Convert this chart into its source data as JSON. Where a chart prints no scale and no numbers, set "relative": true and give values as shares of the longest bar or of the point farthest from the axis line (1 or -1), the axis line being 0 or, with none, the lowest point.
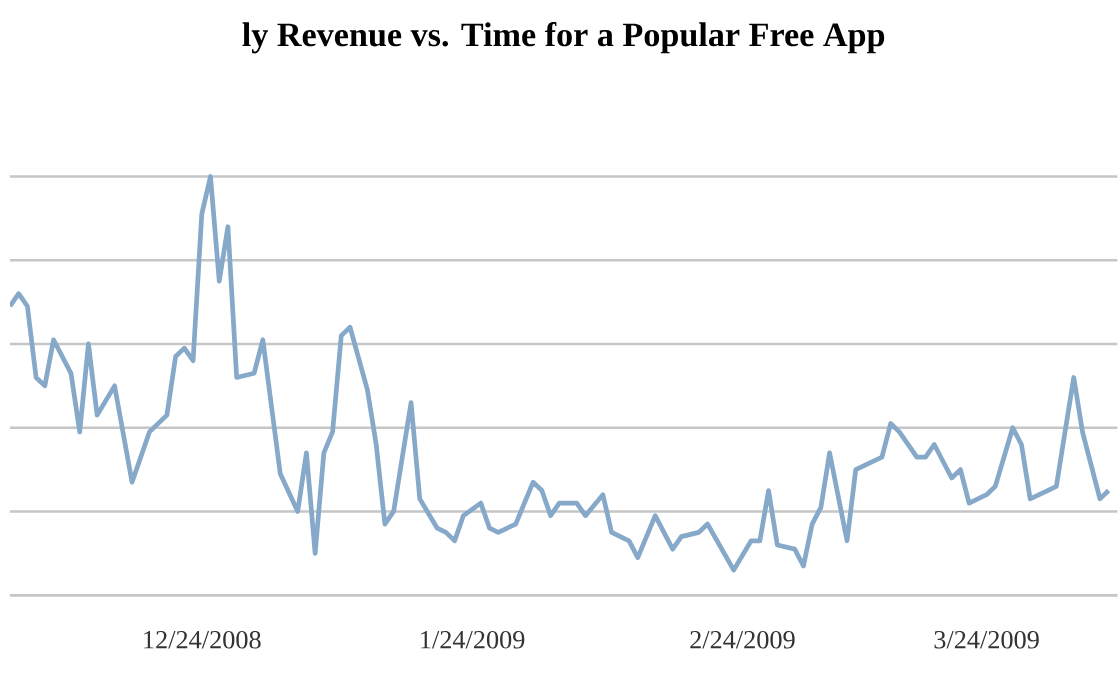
{
  "chart_data": {
    "type": "line",
    "title": "ly Revenue vs. Time for a Popular Free App",
    "relative": true,
    "grid": "y",
    "tick_labels": "x",
    "marker": "none",
    "line_style": "solid",
    "xlim": [
      "2008-12-02",
      "2009-04-08"
    ],
    "xticks": [
      {
        "value": "2008-12-24",
        "label": "12/24/2008"
      },
      {
        "value": "2009-01-24",
        "label": "1/24/2009"
      },
      {
        "value": "2009-02-24",
        "label": "2/24/2009"
      },
      {
        "value": "2009-03-24",
        "label": "3/24/2009"
      }
    ],
    "x": [
      "2008-12-02",
      "2008-12-03",
      "2008-12-04",
      "2008-12-05",
      "2008-12-06",
      "2008-12-07",
      "2008-12-09",
      "2008-12-10",
      "2008-12-11",
      "2008-12-12",
      "2008-12-14",
      "2008-12-16",
      "2008-12-18",
      "2008-12-20",
      "2008-12-21",
      "2008-12-22",
      "2008-12-23",
      "2008-12-24",
      "2008-12-25",
      "2008-12-26",
      "2008-12-27",
      "2008-12-28",
      "2008-12-30",
      "2008-12-31",
      "2009-01-02",
      "2009-01-04",
      "2009-01-05",
      "2009-01-06",
      "2009-01-07",
      "2009-01-08",
      "2009-01-09",
      "2009-01-10",
      "2009-01-12",
      "2009-01-13",
      "2009-01-14",
      "2009-01-15",
      "2009-01-17",
      "2009-01-18",
      "2009-01-20",
      "2009-01-21",
      "2009-01-22",
      "2009-01-23",
      "2009-01-25",
      "2009-01-26",
      "2009-01-27",
      "2009-01-29",
      "2009-01-31",
      "2009-02-01",
      "2009-02-02",
      "2009-02-03",
      "2009-02-05",
      "2009-02-06",
      "2009-02-08",
      "2009-02-09",
      "2009-02-11",
      "2009-02-12",
      "2009-02-14",
      "2009-02-16",
      "2009-02-17",
      "2009-02-19",
      "2009-02-20",
      "2009-02-23",
      "2009-02-25",
      "2009-02-26",
      "2009-02-27",
      "2009-02-28",
      "2009-03-02",
      "2009-03-03",
      "2009-03-04",
      "2009-03-05",
      "2009-03-06",
      "2009-03-08",
      "2009-03-09",
      "2009-03-12",
      "2009-03-13",
      "2009-03-14",
      "2009-03-16",
      "2009-03-17",
      "2009-03-18",
      "2009-03-20",
      "2009-03-21",
      "2009-03-22",
      "2009-03-24",
      "2009-03-25",
      "2009-03-27",
      "2009-03-28",
      "2009-03-29",
      "2009-03-31",
      "2009-04-01",
      "2009-04-03",
      "2009-04-04",
      "2009-04-06",
      "2009-04-07"
    ],
    "series": [
      {
        "color": "#87a9c9",
        "values": [
          0.69,
          0.72,
          0.69,
          0.52,
          0.5,
          0.61,
          0.53,
          0.39,
          0.6,
          0.43,
          0.5,
          0.27,
          0.39,
          0.43,
          0.57,
          0.59,
          0.56,
          0.91,
          1.0,
          0.75,
          0.88,
          0.52,
          0.53,
          0.61,
          0.29,
          0.2,
          0.34,
          0.1,
          0.34,
          0.39,
          0.62,
          0.64,
          0.49,
          0.36,
          0.17,
          0.2,
          0.46,
          0.23,
          0.16,
          0.15,
          0.13,
          0.19,
          0.22,
          0.16,
          0.15,
          0.17,
          0.27,
          0.25,
          0.19,
          0.22,
          0.22,
          0.19,
          0.24,
          0.15,
          0.13,
          0.09,
          0.19,
          0.11,
          0.14,
          0.15,
          0.17,
          0.06,
          0.13,
          0.13,
          0.25,
          0.12,
          0.11,
          0.07,
          0.17,
          0.21,
          0.34,
          0.13,
          0.3,
          0.33,
          0.41,
          0.39,
          0.33,
          0.33,
          0.36,
          0.28,
          0.3,
          0.22,
          0.24,
          0.26,
          0.4,
          0.36,
          0.23,
          0.25,
          0.26,
          0.52,
          0.39,
          0.23,
          0.25
        ]
      }
    ]
  }
}
